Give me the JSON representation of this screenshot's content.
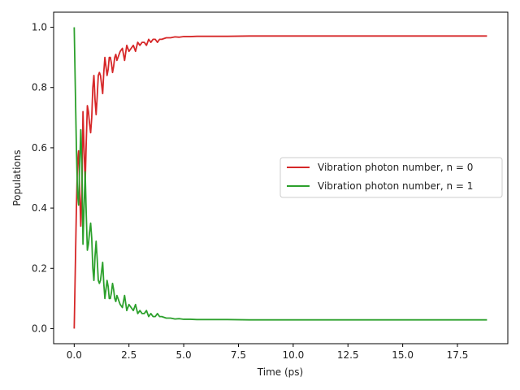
{
  "chart_data": {
    "type": "line",
    "title": "",
    "xlabel": "Time (ps)",
    "ylabel": "Populations",
    "xlim": [
      -0.94,
      19.8
    ],
    "ylim": [
      -0.05,
      1.05
    ],
    "xticks": [
      0.0,
      2.5,
      5.0,
      7.5,
      10.0,
      12.5,
      15.0,
      17.5
    ],
    "xtick_labels": [
      "0.0",
      "2.5",
      "5.0",
      "7.5",
      "10.0",
      "12.5",
      "15.0",
      "17.5"
    ],
    "yticks": [
      0.0,
      0.2,
      0.4,
      0.6,
      0.8,
      1.0
    ],
    "ytick_labels": [
      "0.0",
      "0.2",
      "0.4",
      "0.6",
      "0.8",
      "1.0"
    ],
    "grid": false,
    "legend_position": "center-right",
    "series": [
      {
        "name": "Vibration photon number, n = 0",
        "color": "#d62728",
        "x": [
          0.0,
          0.05,
          0.1,
          0.15,
          0.2,
          0.25,
          0.3,
          0.35,
          0.4,
          0.45,
          0.5,
          0.55,
          0.6,
          0.65,
          0.7,
          0.75,
          0.8,
          0.85,
          0.9,
          0.95,
          1.0,
          1.05,
          1.1,
          1.15,
          1.2,
          1.25,
          1.3,
          1.35,
          1.4,
          1.45,
          1.5,
          1.55,
          1.6,
          1.65,
          1.7,
          1.75,
          1.8,
          1.85,
          1.9,
          1.95,
          2.0,
          2.1,
          2.2,
          2.3,
          2.4,
          2.5,
          2.6,
          2.7,
          2.8,
          2.9,
          3.0,
          3.1,
          3.2,
          3.3,
          3.4,
          3.5,
          3.6,
          3.7,
          3.8,
          3.9,
          4.0,
          4.2,
          4.4,
          4.6,
          4.8,
          5.0,
          5.3,
          5.6,
          6.0,
          6.5,
          7.0,
          8.0,
          9.0,
          10.0,
          12.0,
          14.0,
          16.0,
          18.0,
          18.85
        ],
        "values": [
          0.0,
          0.2,
          0.4,
          0.55,
          0.59,
          0.46,
          0.34,
          0.45,
          0.72,
          0.6,
          0.48,
          0.62,
          0.74,
          0.72,
          0.68,
          0.65,
          0.7,
          0.8,
          0.84,
          0.76,
          0.71,
          0.77,
          0.84,
          0.85,
          0.84,
          0.81,
          0.78,
          0.85,
          0.9,
          0.87,
          0.84,
          0.86,
          0.9,
          0.9,
          0.88,
          0.85,
          0.87,
          0.9,
          0.91,
          0.89,
          0.9,
          0.92,
          0.93,
          0.89,
          0.94,
          0.92,
          0.93,
          0.94,
          0.92,
          0.95,
          0.94,
          0.95,
          0.95,
          0.94,
          0.96,
          0.95,
          0.96,
          0.96,
          0.95,
          0.96,
          0.96,
          0.965,
          0.965,
          0.968,
          0.967,
          0.969,
          0.969,
          0.97,
          0.97,
          0.97,
          0.97,
          0.971,
          0.971,
          0.971,
          0.971,
          0.971,
          0.971,
          0.971,
          0.971
        ]
      },
      {
        "name": "Vibration photon number, n = 1",
        "color": "#2ca02c",
        "x": [
          0.0,
          0.05,
          0.1,
          0.15,
          0.2,
          0.25,
          0.3,
          0.35,
          0.4,
          0.45,
          0.5,
          0.55,
          0.6,
          0.65,
          0.7,
          0.75,
          0.8,
          0.85,
          0.9,
          0.95,
          1.0,
          1.05,
          1.1,
          1.15,
          1.2,
          1.25,
          1.3,
          1.35,
          1.4,
          1.45,
          1.5,
          1.55,
          1.6,
          1.65,
          1.7,
          1.75,
          1.8,
          1.85,
          1.9,
          1.95,
          2.0,
          2.1,
          2.2,
          2.3,
          2.4,
          2.5,
          2.6,
          2.7,
          2.8,
          2.9,
          3.0,
          3.1,
          3.2,
          3.3,
          3.4,
          3.5,
          3.6,
          3.7,
          3.8,
          3.9,
          4.0,
          4.2,
          4.4,
          4.6,
          4.8,
          5.0,
          5.3,
          5.6,
          6.0,
          6.5,
          7.0,
          8.0,
          9.0,
          10.0,
          12.0,
          14.0,
          16.0,
          18.0,
          18.85
        ],
        "values": [
          1.0,
          0.8,
          0.6,
          0.45,
          0.41,
          0.54,
          0.66,
          0.55,
          0.28,
          0.4,
          0.52,
          0.38,
          0.26,
          0.28,
          0.32,
          0.35,
          0.3,
          0.2,
          0.16,
          0.24,
          0.29,
          0.23,
          0.16,
          0.15,
          0.16,
          0.19,
          0.22,
          0.15,
          0.1,
          0.13,
          0.16,
          0.14,
          0.1,
          0.1,
          0.12,
          0.15,
          0.13,
          0.1,
          0.09,
          0.11,
          0.1,
          0.08,
          0.07,
          0.11,
          0.06,
          0.08,
          0.07,
          0.06,
          0.08,
          0.05,
          0.06,
          0.05,
          0.05,
          0.06,
          0.04,
          0.05,
          0.04,
          0.04,
          0.05,
          0.04,
          0.04,
          0.035,
          0.035,
          0.032,
          0.033,
          0.031,
          0.031,
          0.03,
          0.03,
          0.03,
          0.03,
          0.029,
          0.029,
          0.029,
          0.029,
          0.029,
          0.029,
          0.029,
          0.029
        ]
      }
    ]
  }
}
